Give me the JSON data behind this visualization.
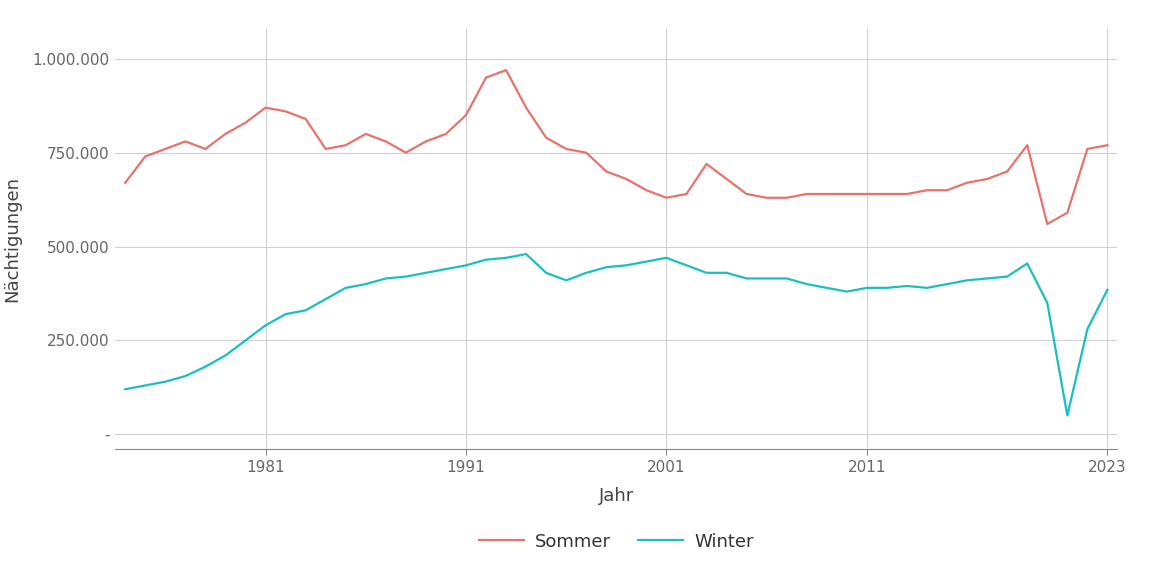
{
  "title": "",
  "xlabel": "Jahr",
  "ylabel": "Nächtigungen",
  "legend_labels": [
    "Sommer",
    "Winter"
  ],
  "sommer_color": "#E8736A",
  "winter_color": "#1ABFBF",
  "background_color": "#ffffff",
  "grid_color": "#d0d0d0",
  "ylim": [
    -40000,
    1080000
  ],
  "yticks": [
    0,
    250000,
    500000,
    750000,
    1000000
  ],
  "ytick_labels": [
    "-",
    "250.000",
    "500.000",
    "750.000",
    "1.000.000"
  ],
  "xticks": [
    1981,
    1991,
    2001,
    2011,
    2023
  ],
  "years": [
    1974,
    1975,
    1976,
    1977,
    1978,
    1979,
    1980,
    1981,
    1982,
    1983,
    1984,
    1985,
    1986,
    1987,
    1988,
    1989,
    1990,
    1991,
    1992,
    1993,
    1994,
    1995,
    1996,
    1997,
    1998,
    1999,
    2000,
    2001,
    2002,
    2003,
    2004,
    2005,
    2006,
    2007,
    2008,
    2009,
    2010,
    2011,
    2012,
    2013,
    2014,
    2015,
    2016,
    2017,
    2018,
    2019,
    2020,
    2021,
    2022,
    2023
  ],
  "sommer": [
    670000,
    740000,
    760000,
    780000,
    760000,
    800000,
    830000,
    870000,
    860000,
    840000,
    760000,
    770000,
    800000,
    780000,
    750000,
    780000,
    800000,
    850000,
    950000,
    970000,
    870000,
    790000,
    760000,
    750000,
    700000,
    680000,
    650000,
    630000,
    640000,
    720000,
    680000,
    640000,
    630000,
    630000,
    640000,
    640000,
    640000,
    640000,
    640000,
    640000,
    650000,
    650000,
    670000,
    680000,
    700000,
    770000,
    560000,
    590000,
    760000,
    770000
  ],
  "winter": [
    120000,
    130000,
    140000,
    155000,
    180000,
    210000,
    250000,
    290000,
    320000,
    330000,
    360000,
    390000,
    400000,
    415000,
    420000,
    430000,
    440000,
    450000,
    465000,
    470000,
    480000,
    430000,
    410000,
    430000,
    445000,
    450000,
    460000,
    470000,
    450000,
    430000,
    430000,
    415000,
    415000,
    415000,
    400000,
    390000,
    380000,
    390000,
    390000,
    395000,
    390000,
    400000,
    410000,
    415000,
    420000,
    455000,
    350000,
    50000,
    280000,
    385000
  ]
}
